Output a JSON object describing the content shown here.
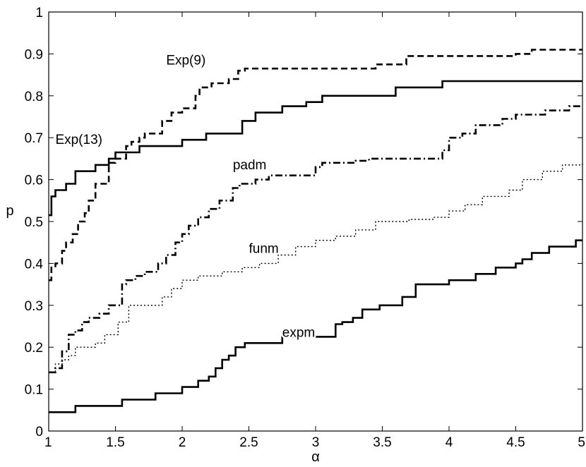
{
  "chart_data": {
    "type": "line",
    "title": "",
    "xlabel": "α",
    "ylabel": "p",
    "xlim": [
      1,
      5
    ],
    "ylim": [
      0,
      1
    ],
    "xticks": [
      "1",
      "1.5",
      "2",
      "2.5",
      "3",
      "3.5",
      "4",
      "4.5",
      "5"
    ],
    "yticks": [
      "0",
      "0.1",
      "0.2",
      "0.3",
      "0.4",
      "0.5",
      "0.6",
      "0.7",
      "0.8",
      "0.9",
      "1"
    ],
    "grid": false,
    "legend": "none",
    "step": true,
    "series": [
      {
        "name": "Exp(9)",
        "line": "dashed",
        "x": [
          1.0,
          1.02,
          1.05,
          1.1,
          1.13,
          1.18,
          1.22,
          1.27,
          1.3,
          1.35,
          1.45,
          1.5,
          1.58,
          1.62,
          1.68,
          1.72,
          1.85,
          1.92,
          2.0,
          2.1,
          2.13,
          2.22,
          2.35,
          2.42,
          2.47,
          3.45,
          3.68,
          4.5,
          4.62,
          5.0
        ],
        "y": [
          0.36,
          0.39,
          0.4,
          0.43,
          0.45,
          0.47,
          0.5,
          0.52,
          0.55,
          0.59,
          0.64,
          0.65,
          0.68,
          0.69,
          0.7,
          0.71,
          0.74,
          0.76,
          0.77,
          0.8,
          0.82,
          0.83,
          0.84,
          0.86,
          0.865,
          0.875,
          0.895,
          0.9,
          0.91,
          0.91
        ]
      },
      {
        "name": "Exp(13)",
        "line": "solid",
        "x": [
          1.0,
          1.02,
          1.05,
          1.13,
          1.2,
          1.25,
          1.35,
          1.45,
          1.5,
          1.62,
          1.68,
          2.0,
          2.18,
          2.45,
          2.55,
          2.75,
          2.93,
          3.05,
          3.6,
          3.95,
          5.0
        ],
        "y": [
          0.515,
          0.56,
          0.575,
          0.59,
          0.62,
          0.62,
          0.635,
          0.65,
          0.665,
          0.665,
          0.68,
          0.695,
          0.71,
          0.74,
          0.76,
          0.775,
          0.785,
          0.8,
          0.82,
          0.835,
          0.835
        ]
      },
      {
        "name": "padm",
        "line": "dashdot",
        "x": [
          1.0,
          1.05,
          1.1,
          1.15,
          1.2,
          1.25,
          1.3,
          1.38,
          1.45,
          1.55,
          1.58,
          1.65,
          1.72,
          1.82,
          1.88,
          1.95,
          2.0,
          2.05,
          2.12,
          2.2,
          2.28,
          2.38,
          2.43,
          2.55,
          2.65,
          2.75,
          3.0,
          3.05,
          3.3,
          3.4,
          3.95,
          4.0,
          4.1,
          4.2,
          4.4,
          4.5,
          4.72,
          4.9,
          5.0
        ],
        "y": [
          0.14,
          0.15,
          0.19,
          0.23,
          0.24,
          0.26,
          0.27,
          0.28,
          0.3,
          0.35,
          0.36,
          0.37,
          0.38,
          0.4,
          0.42,
          0.45,
          0.47,
          0.49,
          0.51,
          0.53,
          0.55,
          0.58,
          0.59,
          0.6,
          0.61,
          0.61,
          0.63,
          0.64,
          0.645,
          0.65,
          0.67,
          0.7,
          0.71,
          0.73,
          0.745,
          0.755,
          0.765,
          0.775,
          0.775
        ]
      },
      {
        "name": "funm",
        "line": "dotted",
        "x": [
          1.0,
          1.05,
          1.1,
          1.15,
          1.2,
          1.35,
          1.42,
          1.52,
          1.6,
          1.85,
          1.92,
          2.0,
          2.12,
          2.3,
          2.45,
          2.58,
          2.72,
          2.85,
          3.0,
          3.15,
          3.3,
          3.45,
          3.7,
          3.88,
          4.0,
          4.12,
          4.25,
          4.45,
          4.55,
          4.7,
          4.85,
          5.0
        ],
        "y": [
          0.14,
          0.16,
          0.17,
          0.18,
          0.2,
          0.21,
          0.23,
          0.26,
          0.3,
          0.32,
          0.34,
          0.36,
          0.37,
          0.38,
          0.39,
          0.4,
          0.42,
          0.44,
          0.455,
          0.465,
          0.48,
          0.5,
          0.505,
          0.51,
          0.525,
          0.54,
          0.56,
          0.575,
          0.6,
          0.62,
          0.635,
          0.64
        ]
      },
      {
        "name": "expm",
        "line": "solid",
        "x": [
          1.0,
          1.2,
          1.55,
          1.8,
          2.0,
          2.12,
          2.2,
          2.25,
          2.3,
          2.35,
          2.4,
          2.47,
          2.75,
          3.15,
          3.2,
          3.28,
          3.35,
          3.48,
          3.65,
          3.75,
          4.0,
          4.2,
          4.35,
          4.5,
          4.55,
          4.62,
          4.75,
          4.95,
          5.0
        ],
        "y": [
          0.045,
          0.06,
          0.075,
          0.09,
          0.105,
          0.12,
          0.13,
          0.15,
          0.17,
          0.18,
          0.2,
          0.21,
          0.225,
          0.255,
          0.26,
          0.27,
          0.29,
          0.3,
          0.32,
          0.35,
          0.36,
          0.375,
          0.39,
          0.4,
          0.41,
          0.425,
          0.44,
          0.455,
          0.455
        ]
      }
    ],
    "annotations": [
      {
        "text": "Exp(9)",
        "x": 1.88,
        "y": 0.875
      },
      {
        "text": "Exp(13)",
        "x": 1.05,
        "y": 0.685
      },
      {
        "text": "padm",
        "x": 2.38,
        "y": 0.625
      },
      {
        "text": "funm",
        "x": 2.5,
        "y": 0.425
      },
      {
        "text": "expm",
        "x": 2.75,
        "y": 0.225
      }
    ]
  }
}
